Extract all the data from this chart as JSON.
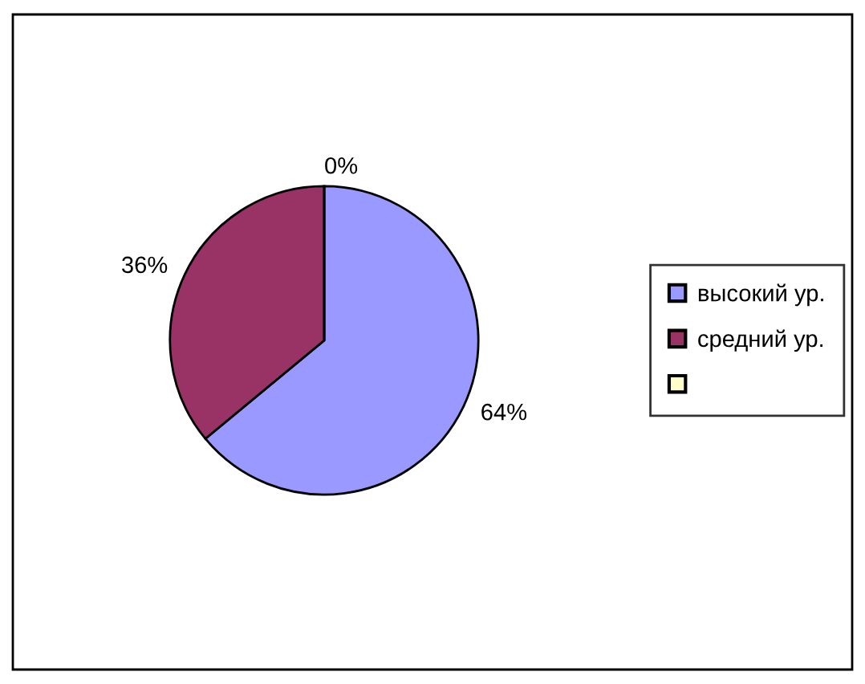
{
  "chart_data": {
    "type": "pie",
    "categories": [
      "высокий ур.",
      "средний ур.",
      null
    ],
    "values": [
      64,
      36,
      0
    ],
    "colors": [
      "#9999ff",
      "#993366",
      "#ffffcc"
    ],
    "value_labels": [
      "64%",
      "36%",
      "0%"
    ],
    "legend": "right"
  }
}
